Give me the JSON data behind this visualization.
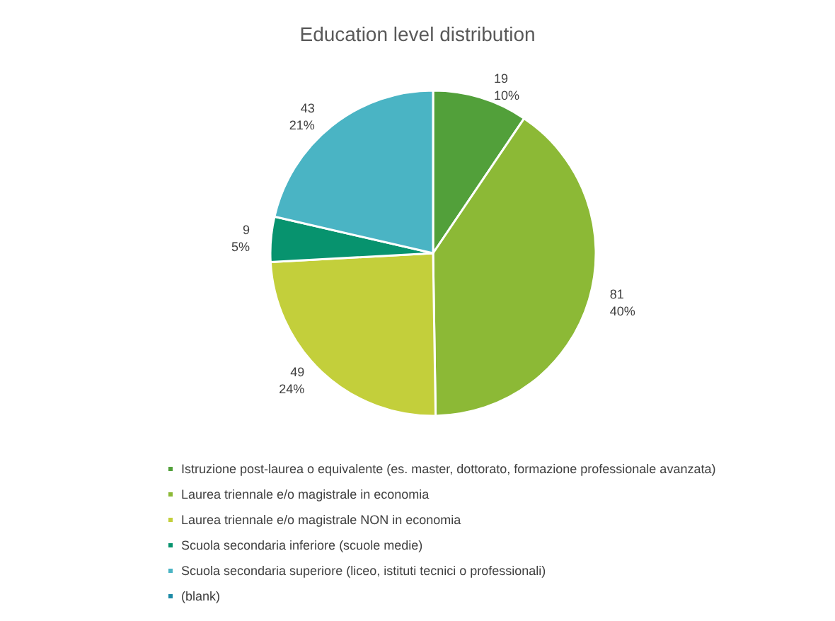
{
  "chart_data": {
    "type": "pie",
    "title": "Education level distribution",
    "categories": [
      "Istruzione post-laurea o equivalente (es. master, dottorato, formazione professionale avanzata)",
      "Laurea triennale e/o magistrale in economia",
      "Laurea triennale e/o magistrale NON in economia",
      "Scuola secondaria inferiore (scuole medie)",
      "Scuola secondaria superiore (liceo, istituti tecnici o professionali)",
      "(blank)"
    ],
    "values": [
      19,
      81,
      49,
      9,
      43,
      null
    ],
    "value_labels": [
      "19\n10%",
      "81\n40%",
      "49\n24%",
      "9\n5%",
      "43\n21%",
      null
    ],
    "colors": [
      "#52a03a",
      "#8cb936",
      "#c3cf3b",
      "#07936e",
      "#4ab4c4",
      "#1c8aa6"
    ],
    "legend": "bottom"
  }
}
